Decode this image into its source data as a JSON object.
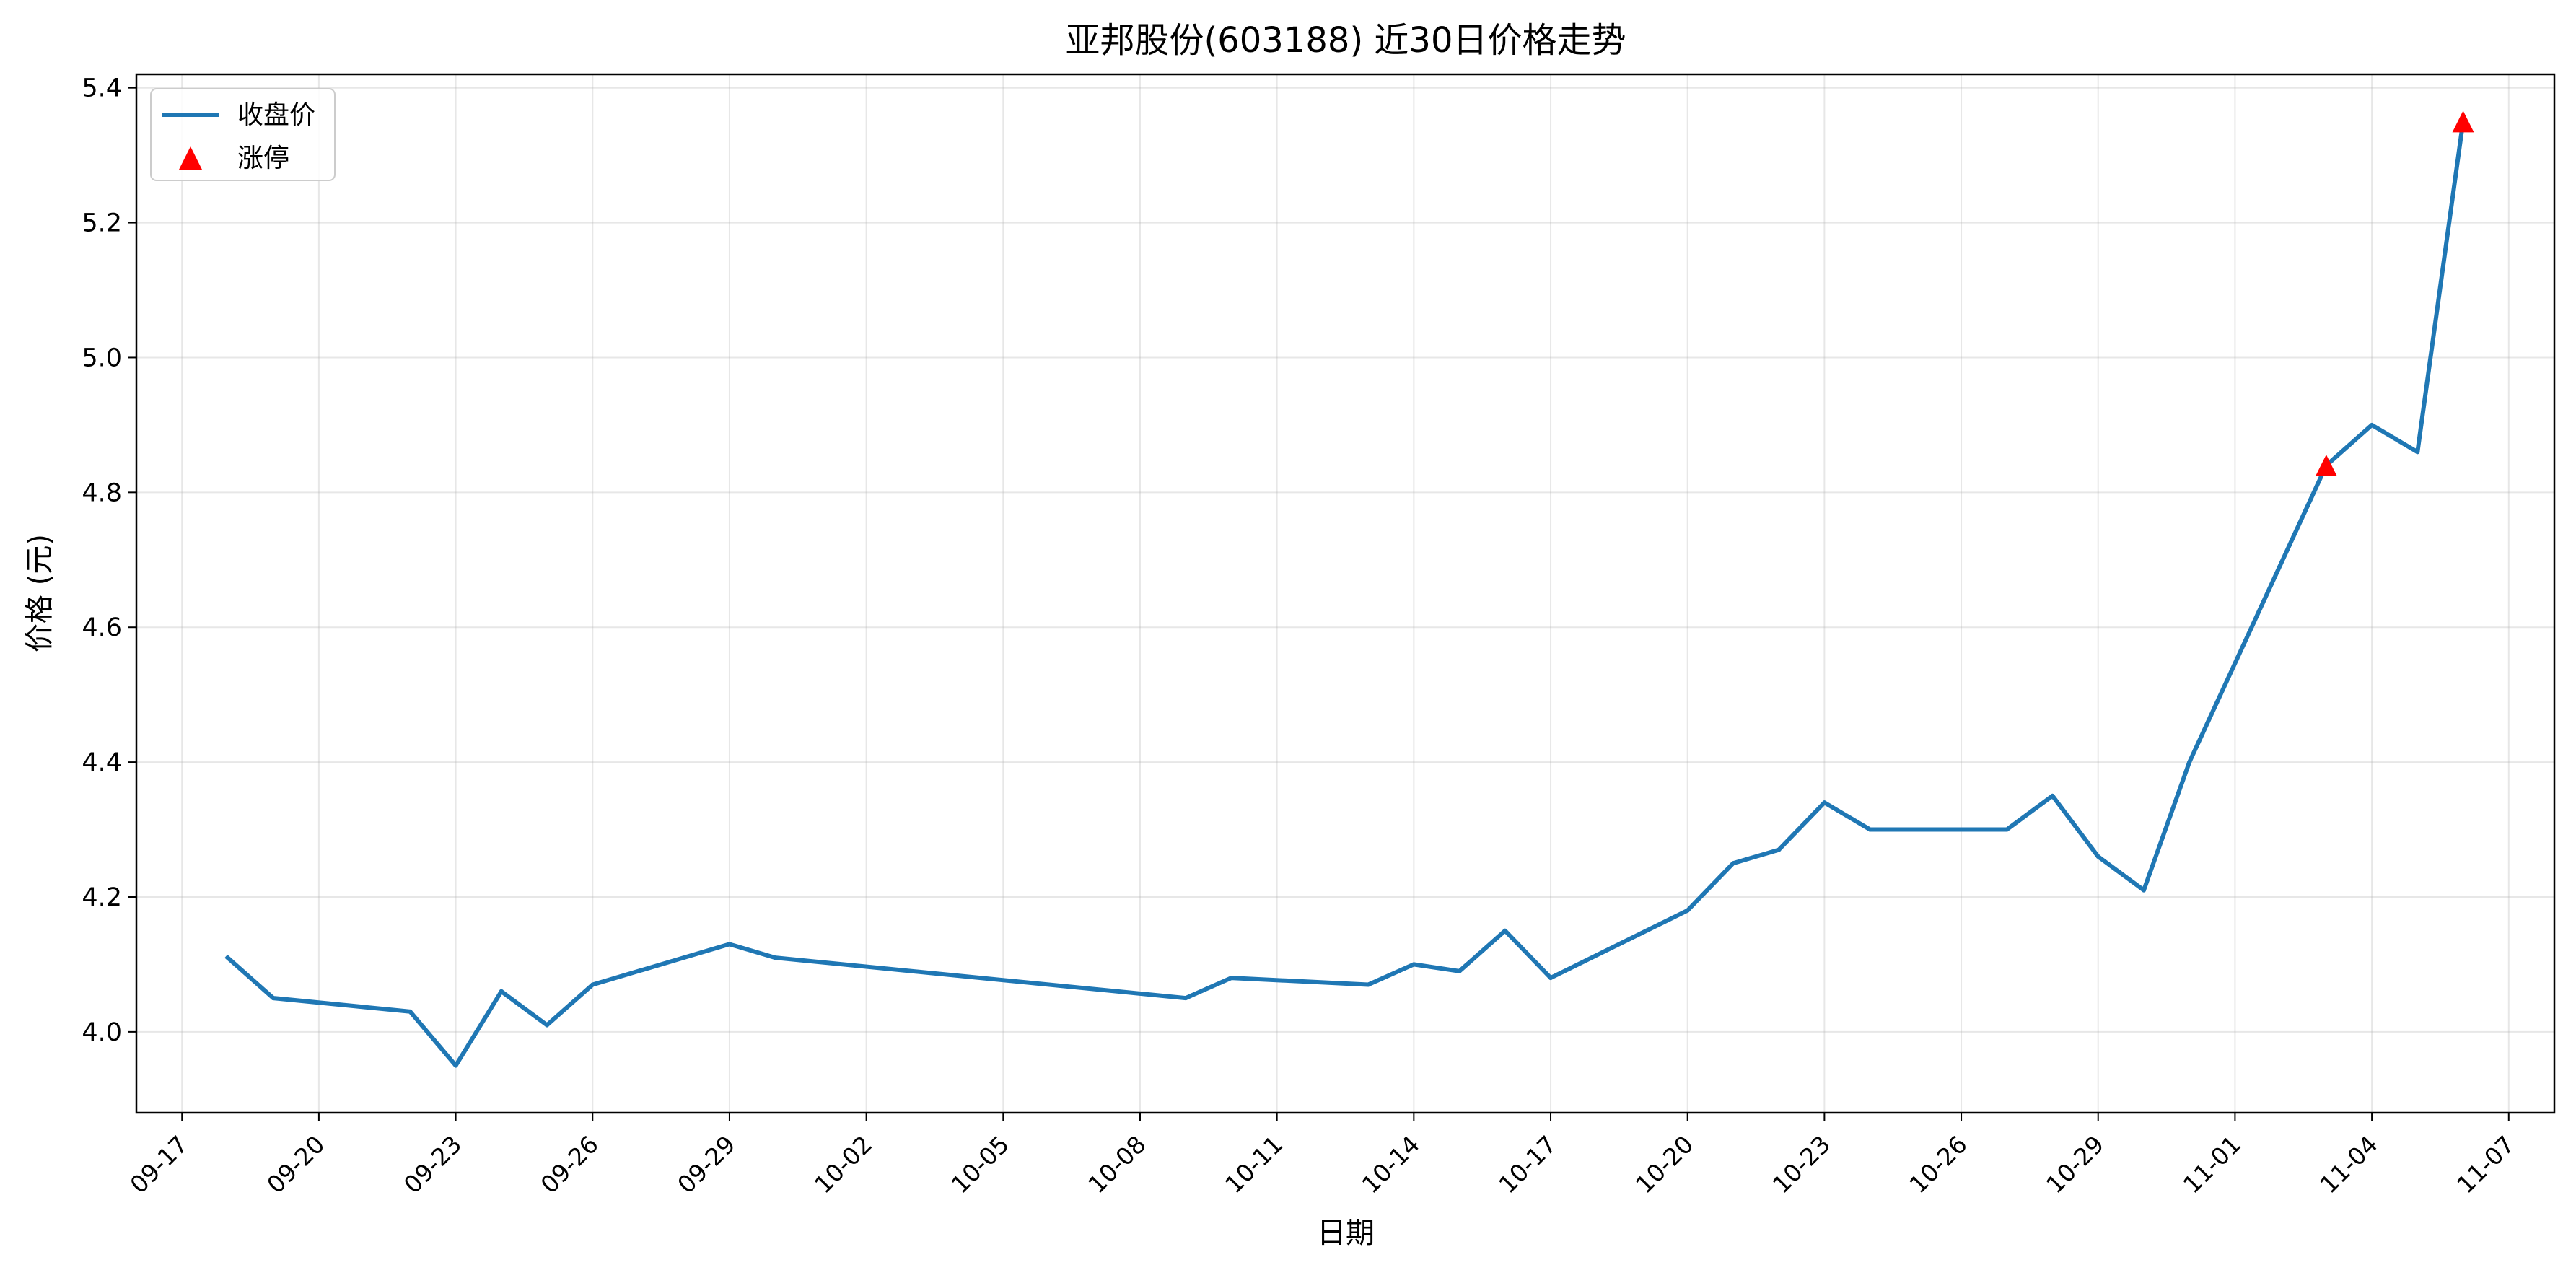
{
  "chart_data": {
    "type": "line",
    "title": "亚邦股份(603188) 近30日价格走势",
    "xlabel": "日期",
    "ylabel": "价格 (元)",
    "grid": true,
    "legend_position": "top-left",
    "xlim": [
      "2024-09-16",
      "2024-11-08"
    ],
    "ylim": [
      3.88,
      5.42
    ],
    "x_ticks": [
      "09-17",
      "09-20",
      "09-23",
      "09-26",
      "09-29",
      "10-02",
      "10-05",
      "10-08",
      "10-11",
      "10-14",
      "10-17",
      "10-20",
      "10-23",
      "10-26",
      "10-29",
      "11-01",
      "11-04",
      "11-07"
    ],
    "y_ticks": [
      "4.0",
      "4.2",
      "4.4",
      "4.6",
      "4.8",
      "5.0",
      "5.2",
      "5.4"
    ],
    "series": [
      {
        "name": "收盘价",
        "type": "line",
        "color": "#1f77b4",
        "points": [
          {
            "x": "2024-09-18",
            "y": 4.11
          },
          {
            "x": "2024-09-19",
            "y": 4.05
          },
          {
            "x": "2024-09-22",
            "y": 4.03
          },
          {
            "x": "2024-09-23",
            "y": 3.95
          },
          {
            "x": "2024-09-24",
            "y": 4.06
          },
          {
            "x": "2024-09-25",
            "y": 4.01
          },
          {
            "x": "2024-09-26",
            "y": 4.07
          },
          {
            "x": "2024-09-29",
            "y": 4.13
          },
          {
            "x": "2024-09-30",
            "y": 4.11
          },
          {
            "x": "2024-10-09",
            "y": 4.05
          },
          {
            "x": "2024-10-10",
            "y": 4.08
          },
          {
            "x": "2024-10-13",
            "y": 4.07
          },
          {
            "x": "2024-10-14",
            "y": 4.1
          },
          {
            "x": "2024-10-15",
            "y": 4.09
          },
          {
            "x": "2024-10-16",
            "y": 4.15
          },
          {
            "x": "2024-10-17",
            "y": 4.08
          },
          {
            "x": "2024-10-20",
            "y": 4.18
          },
          {
            "x": "2024-10-21",
            "y": 4.25
          },
          {
            "x": "2024-10-22",
            "y": 4.27
          },
          {
            "x": "2024-10-23",
            "y": 4.34
          },
          {
            "x": "2024-10-24",
            "y": 4.3
          },
          {
            "x": "2024-10-27",
            "y": 4.3
          },
          {
            "x": "2024-10-28",
            "y": 4.35
          },
          {
            "x": "2024-10-29",
            "y": 4.26
          },
          {
            "x": "2024-10-30",
            "y": 4.21
          },
          {
            "x": "2024-10-31",
            "y": 4.4
          },
          {
            "x": "2024-11-03",
            "y": 4.84
          },
          {
            "x": "2024-11-04",
            "y": 4.9
          },
          {
            "x": "2024-11-05",
            "y": 4.86
          },
          {
            "x": "2024-11-06",
            "y": 5.35
          }
        ]
      },
      {
        "name": "涨停",
        "type": "scatter",
        "marker": "triangle",
        "color": "#ff0000",
        "points": [
          {
            "x": "2024-11-03",
            "y": 4.84
          },
          {
            "x": "2024-11-06",
            "y": 5.35
          }
        ]
      }
    ]
  }
}
